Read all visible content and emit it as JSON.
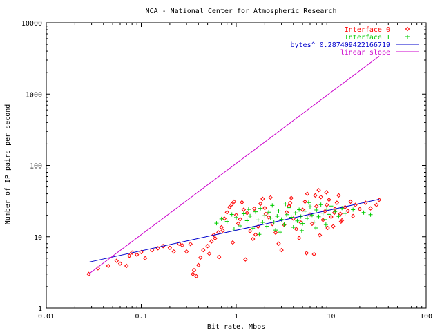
{
  "chart_data": {
    "type": "scatter",
    "title": "NCA - National Center for Atmospheric Research",
    "xlabel": "Bit rate, Mbps",
    "ylabel": "Number of IP pairs per second",
    "xscale": "log",
    "yscale": "log",
    "xlim": [
      0.01,
      100
    ],
    "ylim": [
      1,
      10000
    ],
    "x_ticks": [
      0.01,
      0.1,
      1,
      10,
      100
    ],
    "x_tick_labels": [
      "0.01",
      "0.1",
      "1",
      "10",
      "100"
    ],
    "y_ticks": [
      1,
      10,
      100,
      1000,
      10000
    ],
    "y_tick_labels": [
      "1",
      "10",
      "100",
      "1000",
      "10000"
    ],
    "grid": false,
    "legend_position": "top-right",
    "series": [
      {
        "name": "Interface 0",
        "kind": "points",
        "marker": "diamond",
        "color": "#ff0000",
        "points": [
          [
            0.028,
            3.0
          ],
          [
            0.035,
            3.6
          ],
          [
            0.045,
            3.9
          ],
          [
            0.055,
            4.6
          ],
          [
            0.06,
            4.2
          ],
          [
            0.07,
            3.9
          ],
          [
            0.075,
            5.4
          ],
          [
            0.08,
            6.0
          ],
          [
            0.09,
            5.6
          ],
          [
            0.1,
            6.1
          ],
          [
            0.11,
            5.0
          ],
          [
            0.13,
            6.5
          ],
          [
            0.15,
            6.9
          ],
          [
            0.17,
            7.4
          ],
          [
            0.2,
            7.0
          ],
          [
            0.22,
            6.2
          ],
          [
            0.25,
            8.0
          ],
          [
            0.27,
            7.6
          ],
          [
            0.3,
            6.2
          ],
          [
            0.33,
            7.9
          ],
          [
            0.35,
            3.0
          ],
          [
            0.36,
            3.4
          ],
          [
            0.38,
            2.8
          ],
          [
            0.4,
            4.0
          ],
          [
            0.42,
            5.1
          ],
          [
            0.45,
            6.5
          ],
          [
            0.5,
            7.4
          ],
          [
            0.52,
            5.8
          ],
          [
            0.55,
            8.6
          ],
          [
            0.6,
            9.5
          ],
          [
            0.65,
            11.5
          ],
          [
            0.7,
            13.6
          ],
          [
            0.72,
            12.2
          ],
          [
            0.75,
            18.0
          ],
          [
            0.8,
            22.0
          ],
          [
            0.85,
            26.0
          ],
          [
            0.9,
            28.5
          ],
          [
            0.95,
            31.0
          ],
          [
            1.0,
            20.2
          ],
          [
            1.05,
            15.3
          ],
          [
            1.1,
            17.6
          ],
          [
            1.2,
            24.0
          ],
          [
            1.3,
            21.5
          ],
          [
            1.4,
            12.0
          ],
          [
            1.5,
            9.3
          ],
          [
            1.6,
            10.7
          ],
          [
            1.7,
            13.9
          ],
          [
            1.8,
            29.0
          ],
          [
            1.9,
            34.0
          ],
          [
            2.0,
            25.3
          ],
          [
            2.2,
            18.7
          ],
          [
            2.4,
            15.1
          ],
          [
            2.6,
            11.4
          ],
          [
            2.8,
            8.0
          ],
          [
            3.0,
            6.5
          ],
          [
            3.2,
            14.7
          ],
          [
            3.4,
            22.0
          ],
          [
            3.6,
            27.0
          ],
          [
            3.8,
            35.0
          ],
          [
            4.0,
            18.0
          ],
          [
            4.3,
            12.8
          ],
          [
            4.6,
            9.6
          ],
          [
            5.0,
            24.0
          ],
          [
            5.3,
            31.0
          ],
          [
            5.6,
            40.0
          ],
          [
            6.0,
            20.5
          ],
          [
            6.3,
            15.2
          ],
          [
            6.6,
            5.7
          ],
          [
            7.0,
            26.7
          ],
          [
            7.4,
            45.0
          ],
          [
            7.8,
            36.0
          ],
          [
            8.2,
            17.2
          ],
          [
            8.6,
            22.8
          ],
          [
            9.0,
            28.0
          ],
          [
            9.5,
            33.0
          ],
          [
            10.0,
            19.0
          ],
          [
            10.5,
            14.0
          ],
          [
            11.0,
            24.6
          ],
          [
            11.5,
            30.0
          ],
          [
            12.0,
            38.0
          ],
          [
            12.5,
            21.0
          ],
          [
            13.0,
            17.0
          ],
          [
            14.0,
            26.0
          ],
          [
            15.0,
            23.0
          ],
          [
            16.0,
            31.0
          ],
          [
            17.0,
            19.5
          ],
          [
            18.0,
            28.0
          ],
          [
            20.0,
            24.5
          ],
          [
            23.0,
            30.0
          ],
          [
            26.0,
            25.0
          ],
          [
            30.0,
            28.0
          ],
          [
            32.0,
            33.0
          ],
          [
            2.3,
            35.5
          ],
          [
            1.25,
            4.8
          ],
          [
            0.66,
            5.2
          ],
          [
            5.5,
            5.9
          ],
          [
            3.7,
            29.7
          ],
          [
            4.8,
            15.8
          ],
          [
            7.6,
            10.5
          ],
          [
            9.2,
            13.3
          ],
          [
            12.7,
            16.3
          ],
          [
            1.55,
            24.8
          ],
          [
            2.05,
            20.8
          ],
          [
            0.92,
            8.3
          ],
          [
            0.58,
            10.6
          ],
          [
            1.15,
            30.4
          ],
          [
            6.8,
            38.0
          ],
          [
            8.9,
            42.0
          ],
          [
            10.8,
            21.7
          ]
        ]
      },
      {
        "name": "Interface 1",
        "kind": "points",
        "marker": "plus",
        "color": "#00cc00",
        "points": [
          [
            0.62,
            15.5
          ],
          [
            0.7,
            17.8
          ],
          [
            0.8,
            16.4
          ],
          [
            0.9,
            20.5
          ],
          [
            1.0,
            18.6
          ],
          [
            1.1,
            14.2
          ],
          [
            1.2,
            21.0
          ],
          [
            1.3,
            16.8
          ],
          [
            1.4,
            19.5
          ],
          [
            1.5,
            13.2
          ],
          [
            1.6,
            22.4
          ],
          [
            1.7,
            17.2
          ],
          [
            1.8,
            25.0
          ],
          [
            1.9,
            15.9
          ],
          [
            2.0,
            19.8
          ],
          [
            2.1,
            14.0
          ],
          [
            2.2,
            22.1
          ],
          [
            2.3,
            18.3
          ],
          [
            2.4,
            27.5
          ],
          [
            2.5,
            16.0
          ],
          [
            2.6,
            12.4
          ],
          [
            2.7,
            19.4
          ],
          [
            2.8,
            23.0
          ],
          [
            3.0,
            17.5
          ],
          [
            3.2,
            14.8
          ],
          [
            3.4,
            20.4
          ],
          [
            3.6,
            25.6
          ],
          [
            3.8,
            18.8
          ],
          [
            4.0,
            13.6
          ],
          [
            4.2,
            21.6
          ],
          [
            4.4,
            16.7
          ],
          [
            4.6,
            24.0
          ],
          [
            4.8,
            19.2
          ],
          [
            5.0,
            15.3
          ],
          [
            5.3,
            22.8
          ],
          [
            5.6,
            18.1
          ],
          [
            6.0,
            26.3
          ],
          [
            6.3,
            20.2
          ],
          [
            6.6,
            16.0
          ],
          [
            7.0,
            23.7
          ],
          [
            7.4,
            19.1
          ],
          [
            7.8,
            28.2
          ],
          [
            8.2,
            21.4
          ],
          [
            8.6,
            17.4
          ],
          [
            9.0,
            24.4
          ],
          [
            9.5,
            20.6
          ],
          [
            10.0,
            27.0
          ],
          [
            11.0,
            22.6
          ],
          [
            12.0,
            19.3
          ],
          [
            13.0,
            25.2
          ],
          [
            14.0,
            21.2
          ],
          [
            17.0,
            24.0
          ],
          [
            22.0,
            21.8
          ],
          [
            26.0,
            20.4
          ],
          [
            0.95,
            12.8
          ],
          [
            1.35,
            24.2
          ],
          [
            2.9,
            11.6
          ],
          [
            4.9,
            12.2
          ],
          [
            6.9,
            13.3
          ],
          [
            8.8,
            14.8
          ],
          [
            1.75,
            10.8
          ],
          [
            3.3,
            28.8
          ],
          [
            5.8,
            30.2
          ]
        ]
      },
      {
        "name": "bytes^ 0.287409422166719",
        "kind": "line",
        "color": "#0000cc",
        "points": [
          [
            0.028,
            4.4
          ],
          [
            32.0,
            33.5
          ]
        ]
      },
      {
        "name": "linear slope",
        "kind": "line",
        "color": "#cc00cc",
        "points": [
          [
            0.028,
            3.0
          ],
          [
            32.0,
            3400.0
          ]
        ]
      }
    ]
  }
}
